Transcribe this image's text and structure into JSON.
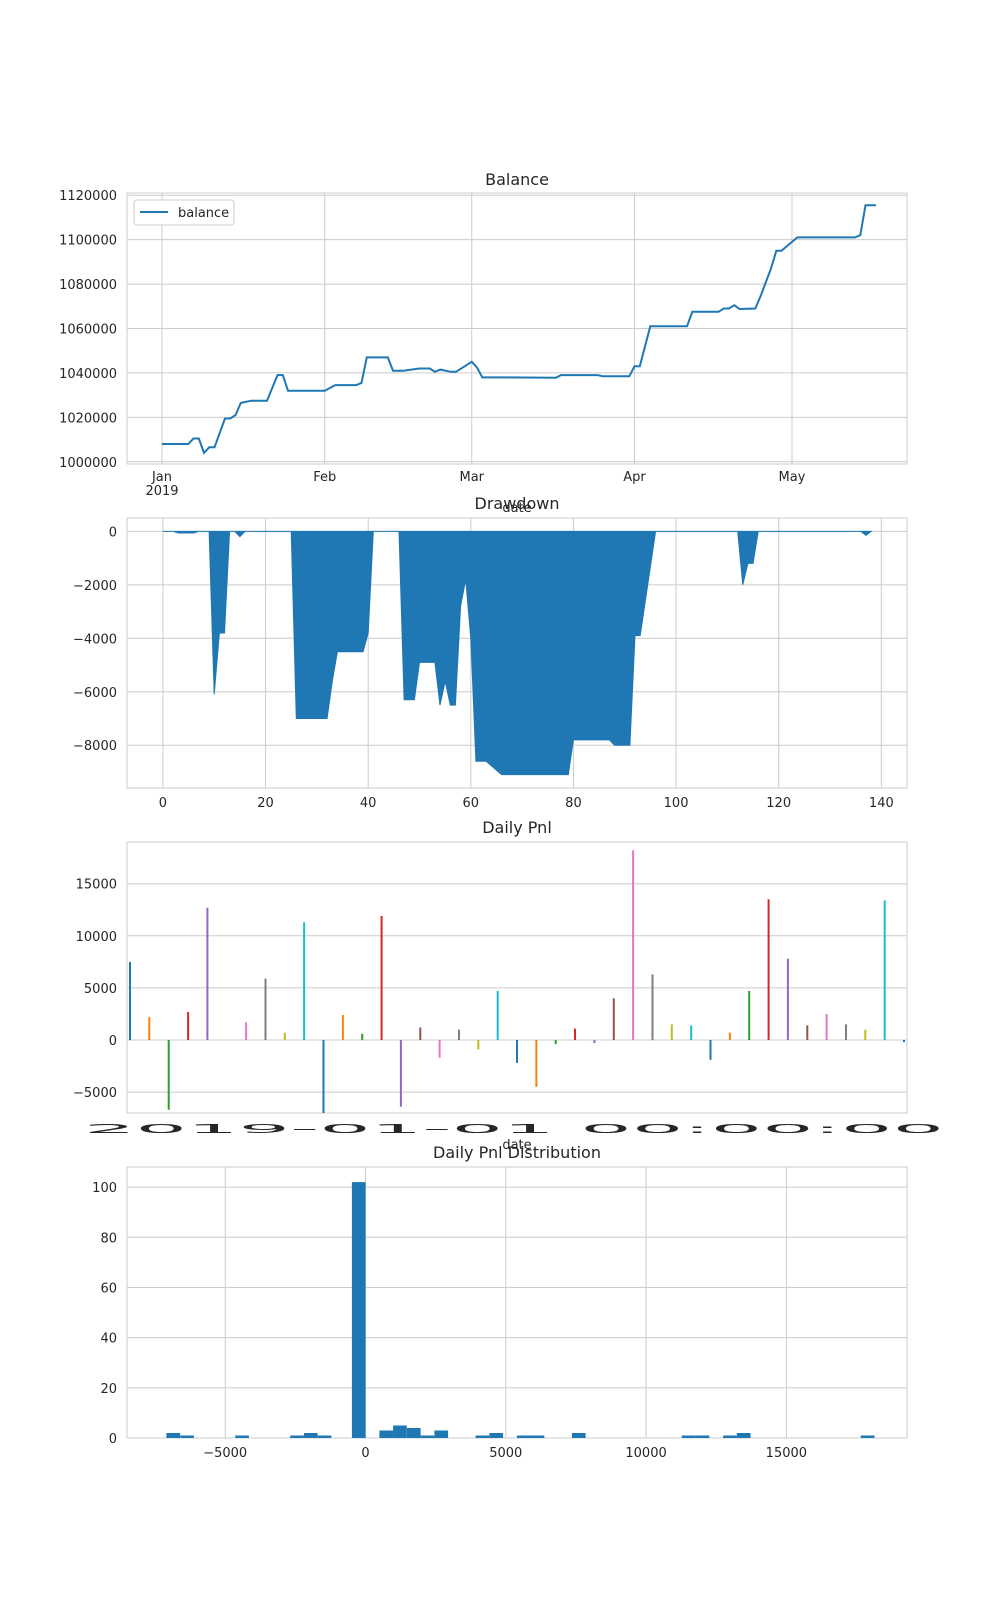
{
  "chart_data": [
    {
      "type": "line",
      "title": "Balance",
      "xlabel": "date",
      "ylabel": "",
      "legend": {
        "placement": "top-left",
        "entries": [
          "balance"
        ]
      },
      "grid": true,
      "color": "#1f77b4",
      "x_ticks": [
        "Jan\n2019",
        "Feb",
        "Mar",
        "Apr",
        "May"
      ],
      "y_ticks": [
        "1000000",
        "1020000",
        "1040000",
        "1060000",
        "1080000",
        "1100000",
        "1120000"
      ],
      "ylim": [
        999000,
        1121000
      ],
      "series": [
        {
          "name": "balance",
          "x": [
            "2019-01-01",
            "2019-01-04",
            "2019-01-06",
            "2019-01-07",
            "2019-01-08",
            "2019-01-09",
            "2019-01-10",
            "2019-01-11",
            "2019-01-13",
            "2019-01-14",
            "2019-01-15",
            "2019-01-16",
            "2019-01-18",
            "2019-01-21",
            "2019-01-23",
            "2019-01-24",
            "2019-01-25",
            "2019-01-27",
            "2019-02-01",
            "2019-02-03",
            "2019-02-07",
            "2019-02-08",
            "2019-02-09",
            "2019-02-13",
            "2019-02-14",
            "2019-02-16",
            "2019-02-19",
            "2019-02-20",
            "2019-02-21",
            "2019-02-22",
            "2019-02-23",
            "2019-02-25",
            "2019-02-26",
            "2019-03-01",
            "2019-03-02",
            "2019-03-03",
            "2019-03-06",
            "2019-03-07",
            "2019-03-17",
            "2019-03-18",
            "2019-03-25",
            "2019-03-26",
            "2019-03-31",
            "2019-04-01",
            "2019-04-02",
            "2019-04-04",
            "2019-04-05",
            "2019-04-11",
            "2019-04-12",
            "2019-04-17",
            "2019-04-18",
            "2019-04-19",
            "2019-04-20",
            "2019-04-21",
            "2019-04-24",
            "2019-04-25",
            "2019-04-27",
            "2019-04-28",
            "2019-04-29",
            "2019-04-30",
            "2019-05-02",
            "2019-05-04",
            "2019-05-05",
            "2019-05-13",
            "2019-05-14",
            "2019-05-15",
            "2019-05-17"
          ],
          "values": [
            1008000,
            1008000,
            1008000,
            1010500,
            1010500,
            1004000,
            1006500,
            1006500,
            1019500,
            1019500,
            1021000,
            1026500,
            1027500,
            1027500,
            1039000,
            1039000,
            1032000,
            1032000,
            1032000,
            1034500,
            1034500,
            1035500,
            1047000,
            1047000,
            1041000,
            1041000,
            1042000,
            1042000,
            1042000,
            1040500,
            1041500,
            1040500,
            1040500,
            1045000,
            1042500,
            1038000,
            1038000,
            1038000,
            1037800,
            1039000,
            1039000,
            1038500,
            1038500,
            1043000,
            1043000,
            1061000,
            1061000,
            1061000,
            1067500,
            1067500,
            1069000,
            1069000,
            1070500,
            1068800,
            1069000,
            1074500,
            1087000,
            1095000,
            1095000,
            1097000,
            1101000,
            1101000,
            1101000,
            1101000,
            1102000,
            1115500,
            1115500
          ]
        }
      ]
    },
    {
      "type": "area",
      "title": "Drawdown",
      "xlabel": "",
      "ylabel": "",
      "grid": true,
      "color": "#1f77b4",
      "x_ticks": [
        "0",
        "20",
        "40",
        "60",
        "80",
        "100",
        "120",
        "140"
      ],
      "y_ticks": [
        "0",
        "−2000",
        "−4000",
        "−6000",
        "−8000"
      ],
      "xlim": [
        -7,
        145
      ],
      "ylim": [
        -9600,
        500
      ],
      "series": [
        {
          "name": "",
          "x": [
            0,
            2,
            3,
            6,
            7,
            9,
            10,
            11,
            12,
            13,
            14,
            15,
            16,
            17,
            25,
            26,
            32,
            33,
            34,
            39,
            40,
            41,
            46,
            47,
            49,
            50,
            53,
            54,
            55,
            56,
            57,
            58,
            59,
            60,
            61,
            62,
            63,
            66,
            69,
            70,
            79,
            80,
            87,
            88,
            91,
            92,
            93,
            96,
            97,
            112,
            113,
            114,
            115,
            116,
            117,
            118,
            136,
            137,
            138
          ],
          "values": [
            0,
            0,
            -60,
            -60,
            0,
            0,
            -6100,
            -3800,
            -3800,
            0,
            0,
            -200,
            0,
            0,
            0,
            -7000,
            -7000,
            -5600,
            -4500,
            -4500,
            -3800,
            0,
            0,
            -6300,
            -6300,
            -4900,
            -4900,
            -6500,
            -5600,
            -6500,
            -6500,
            -2800,
            -1800,
            -4000,
            -8600,
            -8600,
            -8600,
            -9100,
            -9100,
            -9100,
            -9100,
            -7800,
            -7800,
            -8000,
            -8000,
            -3900,
            -3900,
            0,
            0,
            0,
            -2000,
            -1200,
            -1200,
            0,
            0,
            0,
            0,
            -150,
            0
          ]
        }
      ]
    },
    {
      "type": "bar",
      "title": "Daily Pnl",
      "xlabel": "date",
      "ylabel": "",
      "grid": true,
      "y_ticks": [
        "−5000",
        "0",
        "5000",
        "10000",
        "15000"
      ],
      "ylim": [
        -7000,
        19000
      ],
      "series": [
        {
          "name": "",
          "values": [
            7500,
            2200,
            -6700,
            2700,
            12700,
            0,
            1700,
            5900,
            700,
            11300,
            -7000,
            2400,
            600,
            11900,
            -6400,
            1200,
            -1700,
            1000,
            -900,
            4700,
            -2200,
            -4500,
            -400,
            1100,
            -300,
            4000,
            18200,
            6300,
            1500,
            1400,
            -1900,
            700,
            4700,
            13500,
            7800,
            1400,
            2500,
            1500,
            1000,
            13400,
            -200
          ]
        }
      ],
      "tick_label_text": "2019-01-01 00:00:00"
    },
    {
      "type": "bar",
      "title": "Daily Pnl Distribution",
      "xlabel": "",
      "ylabel": "",
      "grid": true,
      "color": "#1f77b4",
      "x_ticks": [
        "−5000",
        "0",
        "5000",
        "10000",
        "15000"
      ],
      "y_ticks": [
        "0",
        "20",
        "40",
        "60",
        "80",
        "100"
      ],
      "xlim": [
        -8500,
        19300
      ],
      "ylim": [
        0,
        108
      ],
      "bin_width": 490,
      "bin_centers": [
        -6850,
        -6360,
        -4400,
        -2440,
        -1950,
        -1460,
        -240,
        740,
        1230,
        1720,
        2210,
        2700,
        4170,
        4660,
        5640,
        6130,
        7600,
        11520,
        12010,
        12990,
        13480,
        17900
      ],
      "values": [
        2,
        1,
        1,
        1,
        2,
        1,
        102,
        3,
        5,
        4,
        1,
        3,
        1,
        2,
        1,
        1,
        2,
        1,
        1,
        1,
        2,
        1
      ]
    }
  ]
}
